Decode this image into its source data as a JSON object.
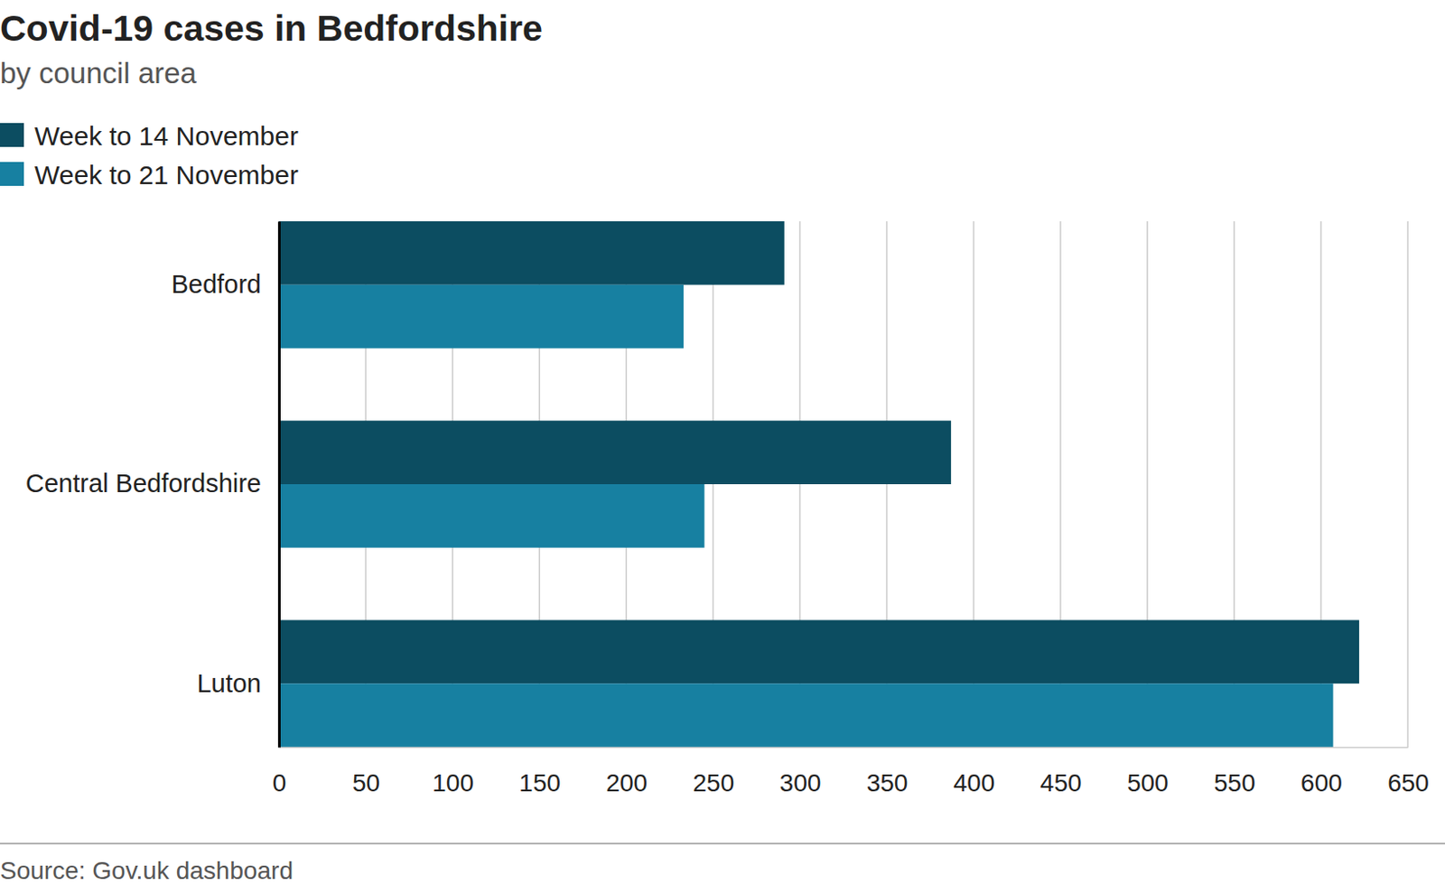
{
  "chart_data": {
    "type": "bar",
    "orientation": "horizontal",
    "title": "Covid-19 cases in Bedfordshire",
    "subtitle": "by council area",
    "source": "Source: Gov.uk dashboard",
    "categories": [
      "Bedford",
      "Central Bedfordshire",
      "Luton"
    ],
    "series": [
      {
        "name": "Week to 14 November",
        "color": "#0c4d61",
        "values": [
          291,
          387,
          622
        ]
      },
      {
        "name": "Week to 21 November",
        "color": "#1780a1",
        "values": [
          233,
          245,
          607
        ]
      }
    ],
    "xlim": [
      0,
      650
    ],
    "xticks": [
      0,
      50,
      100,
      150,
      200,
      250,
      300,
      350,
      400,
      450,
      500,
      550,
      600,
      650
    ],
    "grid": true,
    "legend": "top-left"
  }
}
